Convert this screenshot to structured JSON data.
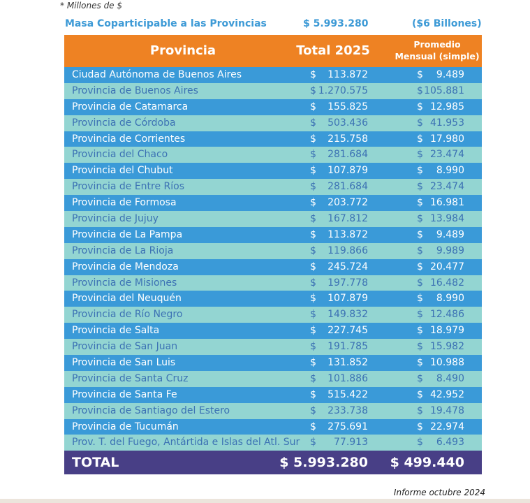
{
  "note": "* Millones de $",
  "summary": {
    "label": "Masa Coparticipable a las Provincias",
    "amount": "$ 5.993.280",
    "equivalent": "($6 Billones)"
  },
  "colors": {
    "header": "#ee8223",
    "row_dark": "#3a9ad8",
    "row_light": "#93d5d2",
    "total": "#483f86",
    "accent_text": "#3d9ad6"
  },
  "table": {
    "headers": {
      "provincia": "Provincia",
      "total": "Total 2025",
      "promedio_line1": "Promedio",
      "promedio_line2": "Mensual (simple)"
    },
    "currency": "$",
    "rows": [
      {
        "name": "Ciudad Autónoma de Buenos Aires",
        "total": "113.872",
        "avg": "9.489"
      },
      {
        "name": "Provincia de Buenos Aires",
        "total": "1.270.575",
        "avg": "105.881"
      },
      {
        "name": "Provincia de Catamarca",
        "total": "155.825",
        "avg": "12.985"
      },
      {
        "name": "Provincia de Córdoba",
        "total": "503.436",
        "avg": "41.953"
      },
      {
        "name": "Provincia de Corrientes",
        "total": "215.758",
        "avg": "17.980"
      },
      {
        "name": "Provincia del Chaco",
        "total": "281.684",
        "avg": "23.474"
      },
      {
        "name": "Provincia del Chubut",
        "total": "107.879",
        "avg": "8.990"
      },
      {
        "name": "Provincia de Entre Ríos",
        "total": "281.684",
        "avg": "23.474"
      },
      {
        "name": "Provincia de Formosa",
        "total": "203.772",
        "avg": "16.981"
      },
      {
        "name": "Provincia de Jujuy",
        "total": "167.812",
        "avg": "13.984"
      },
      {
        "name": "Provincia de La Pampa",
        "total": "113.872",
        "avg": "9.489"
      },
      {
        "name": "Provincia de La Rioja",
        "total": "119.866",
        "avg": "9.989"
      },
      {
        "name": "Provincia de Mendoza",
        "total": "245.724",
        "avg": "20.477"
      },
      {
        "name": "Provincia de Misiones",
        "total": "197.778",
        "avg": "16.482"
      },
      {
        "name": "Provincia del Neuquén",
        "total": "107.879",
        "avg": "8.990"
      },
      {
        "name": "Provincia de Río Negro",
        "total": "149.832",
        "avg": "12.486"
      },
      {
        "name": "Provincia de Salta",
        "total": "227.745",
        "avg": "18.979"
      },
      {
        "name": "Provincia de San Juan",
        "total": "191.785",
        "avg": "15.982"
      },
      {
        "name": "Provincia de San Luis",
        "total": "131.852",
        "avg": "10.988"
      },
      {
        "name": "Provincia de Santa Cruz",
        "total": "101.886",
        "avg": "8.490"
      },
      {
        "name": "Provincia de Santa Fe",
        "total": "515.422",
        "avg": "42.952"
      },
      {
        "name": "Provincia de Santiago del Estero",
        "total": "233.738",
        "avg": "19.478"
      },
      {
        "name": "Provincia de Tucumán",
        "total": "275.691",
        "avg": "22.974"
      },
      {
        "name": "Prov. T. del Fuego, Antártida e Islas del Atl. Sur",
        "total": "77.913",
        "avg": "6.493"
      }
    ],
    "total_row": {
      "label": "TOTAL",
      "total": "$ 5.993.280",
      "avg": "$ 499.440"
    }
  },
  "footer": "Informe octubre 2024"
}
